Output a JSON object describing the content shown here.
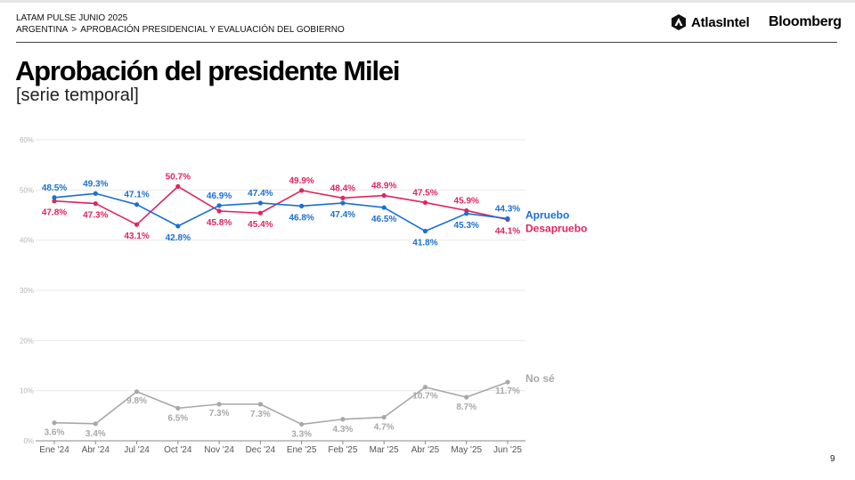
{
  "header": {
    "line1": "LATAM PULSE JUNIO 2025",
    "crumb_country": "ARGENTINA",
    "crumb_sep": ">",
    "crumb_topic": "APROBACIÓN PRESIDENCIAL Y EVALUACIÓN DEL GOBIERNO"
  },
  "brands": {
    "atlas": "AtlasIntel",
    "bloomberg": "Bloomberg"
  },
  "page": {
    "title": "Aprobación del presidente Milei",
    "subtitle": "[serie temporal]",
    "number": "9"
  },
  "colors": {
    "apruebo": "#1a6fd6",
    "desapruebo": "#e0245e",
    "nose": "#a8a8a8",
    "grid": "#e9e9e9"
  },
  "chart_data": {
    "type": "line",
    "categories": [
      "Ene '24",
      "Abr '24",
      "Jul '24",
      "Oct '24",
      "Nov '24",
      "Dec '24",
      "Ene '25",
      "Feb '25",
      "Mar '25",
      "Abr '25",
      "May '25",
      "Jun '25"
    ],
    "ylim": [
      0,
      60
    ],
    "yticks": [
      "0%",
      "10%",
      "20%",
      "30%",
      "40%",
      "50%",
      "60%"
    ],
    "grid": true,
    "series": [
      {
        "name": "Apruebo",
        "color": "#1a6fd6",
        "values": [
          48.5,
          49.3,
          47.1,
          42.8,
          46.9,
          47.4,
          46.8,
          47.4,
          46.5,
          41.8,
          45.3,
          44.3
        ],
        "labels": [
          "48.5%",
          "49.3%",
          "47.1%",
          "42.8%",
          "46.9%",
          "47.4%",
          "46.8%",
          "47.4%",
          "46.5%",
          "41.8%",
          "45.3%",
          "44.3%"
        ]
      },
      {
        "name": "Desapruebo",
        "color": "#e0245e",
        "values": [
          47.8,
          47.3,
          43.1,
          50.7,
          45.8,
          45.4,
          49.9,
          48.4,
          48.9,
          47.5,
          45.9,
          44.1
        ],
        "labels": [
          "47.8%",
          "47.3%",
          "43.1%",
          "50.7%",
          "45.8%",
          "45.4%",
          "49.9%",
          "48.4%",
          "48.9%",
          "47.5%",
          "45.9%",
          "44.1%"
        ]
      },
      {
        "name": "No sé",
        "color": "#a8a8a8",
        "values": [
          3.6,
          3.4,
          9.8,
          6.5,
          7.3,
          7.3,
          3.3,
          4.3,
          4.7,
          10.7,
          8.7,
          11.7
        ],
        "labels": [
          "3.6%",
          "3.4%",
          "9.8%",
          "6.5%",
          "7.3%",
          "7.3%",
          "3.3%",
          "4.3%",
          "4.7%",
          "10.7%",
          "8.7%",
          "11.7%"
        ]
      }
    ]
  }
}
